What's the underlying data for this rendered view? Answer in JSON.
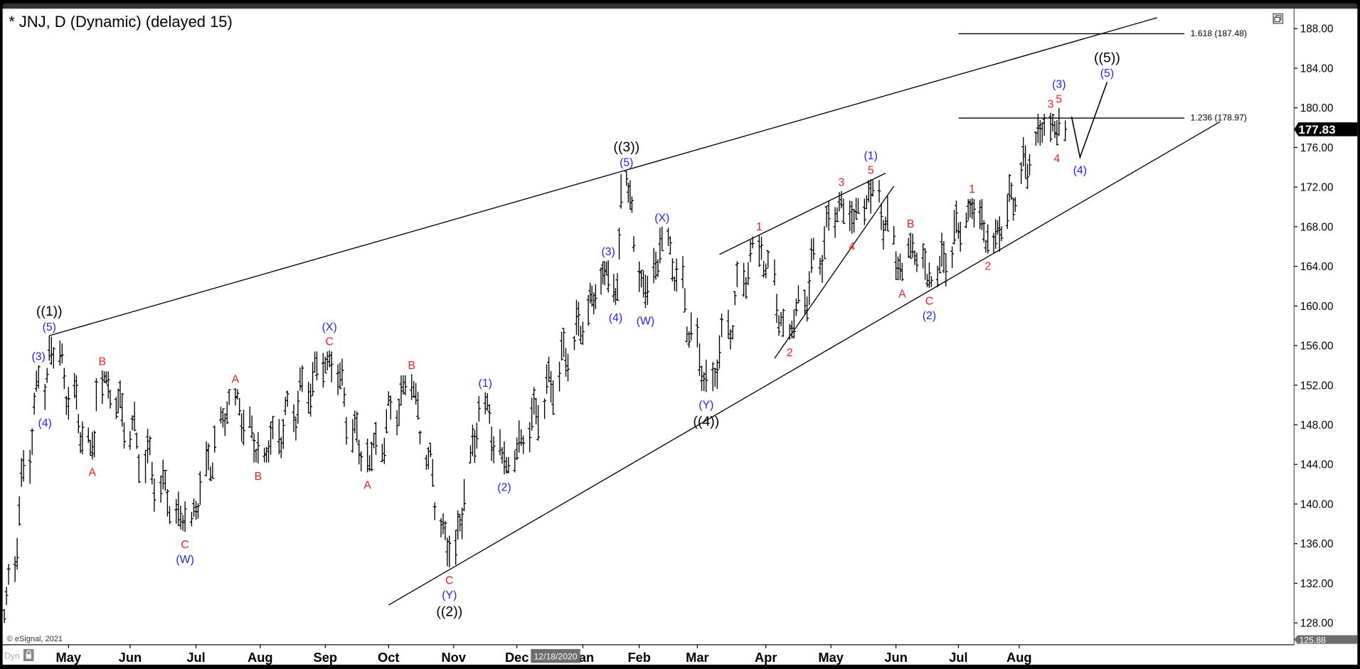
{
  "header": {
    "title": "* JNJ, D (Dynamic) (delayed 15)",
    "restore_icon": "window-restore-icon"
  },
  "footer": {
    "copyright": "© eSignal, 2021",
    "dyn_label": "Dyn",
    "lock_icon": "lock-icon",
    "date_tooltip": "12/18/2020"
  },
  "colors": {
    "black": "#000000",
    "blue": "#1f1fff",
    "red": "#ff1a1a",
    "price_tag_bg": "#000000",
    "low_tag_bg": "#6d6d6d"
  },
  "chart_data": {
    "type": "ohlc-bar",
    "symbol": "JNJ",
    "interval": "D",
    "ylim": [
      125.88,
      190
    ],
    "y_ticks": [
      "188.00",
      "184.00",
      "180.00",
      "176.00",
      "172.00",
      "168.00",
      "164.00",
      "160.00",
      "156.00",
      "152.00",
      "148.00",
      "144.00",
      "140.00",
      "136.00",
      "132.00",
      "128.00"
    ],
    "x_ticks": [
      "May",
      "Jun",
      "Jul",
      "Aug",
      "Sep",
      "Oct",
      "Nov",
      "Dec",
      "Jan",
      "Feb",
      "Mar",
      "Apr",
      "May",
      "Jun",
      "Jul",
      "Aug"
    ],
    "last_price": "177.83",
    "low_marker": "125.88",
    "grid": false,
    "pivots": [
      {
        "date": "2020-04-01",
        "price": 128.0,
        "type": "L",
        "labels": []
      },
      {
        "date": "2020-04-17",
        "price": 154.0,
        "type": "H",
        "labels": [
          {
            "text": "(3)",
            "color": "blue"
          }
        ]
      },
      {
        "date": "2020-04-20",
        "price": 149.5,
        "type": "L",
        "labels": [
          {
            "text": "(4)",
            "color": "blue"
          }
        ]
      },
      {
        "date": "2020-04-22",
        "price": 157.0,
        "type": "H",
        "labels": [
          {
            "text": "((1))",
            "color": "black"
          },
          {
            "text": "(5)",
            "color": "blue"
          }
        ]
      },
      {
        "date": "2020-05-13",
        "price": 144.5,
        "type": "L",
        "labels": [
          {
            "text": "A",
            "color": "red"
          }
        ]
      },
      {
        "date": "2020-05-18",
        "price": 153.5,
        "type": "H",
        "labels": [
          {
            "text": "B",
            "color": "red"
          }
        ]
      },
      {
        "date": "2020-06-26",
        "price": 137.2,
        "type": "L",
        "labels": [
          {
            "text": "C",
            "color": "red"
          },
          {
            "text": "(W)",
            "color": "blue"
          }
        ]
      },
      {
        "date": "2020-07-20",
        "price": 151.7,
        "type": "H",
        "labels": [
          {
            "text": "A",
            "color": "red"
          }
        ]
      },
      {
        "date": "2020-07-31",
        "price": 144.1,
        "type": "L",
        "labels": [
          {
            "text": "B",
            "color": "red"
          }
        ]
      },
      {
        "date": "2020-09-03",
        "price": 155.5,
        "type": "H",
        "labels": [
          {
            "text": "(X)",
            "color": "blue"
          },
          {
            "text": "C",
            "color": "red"
          }
        ]
      },
      {
        "date": "2020-09-21",
        "price": 143.2,
        "type": "L",
        "labels": [
          {
            "text": "A",
            "color": "red"
          }
        ]
      },
      {
        "date": "2020-10-12",
        "price": 153.1,
        "type": "H",
        "labels": [
          {
            "text": "B",
            "color": "red"
          }
        ]
      },
      {
        "date": "2020-10-30",
        "price": 133.6,
        "type": "L",
        "labels": [
          {
            "text": "C",
            "color": "red"
          },
          {
            "text": "(Y)",
            "color": "blue"
          },
          {
            "text": "((2))",
            "color": "black"
          }
        ]
      },
      {
        "date": "2020-11-16",
        "price": 151.3,
        "type": "H",
        "labels": [
          {
            "text": "(1)",
            "color": "blue"
          }
        ]
      },
      {
        "date": "2020-11-25",
        "price": 143.0,
        "type": "L",
        "labels": [
          {
            "text": "(2)",
            "color": "blue"
          }
        ]
      },
      {
        "date": "2021-01-15",
        "price": 164.6,
        "type": "H",
        "labels": [
          {
            "text": "(3)",
            "color": "blue"
          }
        ]
      },
      {
        "date": "2021-01-19",
        "price": 160.1,
        "type": "L",
        "labels": [
          {
            "text": "(4)",
            "color": "blue"
          }
        ]
      },
      {
        "date": "2021-01-25",
        "price": 173.6,
        "type": "H",
        "labels": [
          {
            "text": "((3))",
            "color": "black"
          },
          {
            "text": "(5)",
            "color": "blue"
          }
        ]
      },
      {
        "date": "2021-02-04",
        "price": 159.8,
        "type": "L",
        "labels": [
          {
            "text": "(W)",
            "color": "blue"
          }
        ]
      },
      {
        "date": "2021-02-12",
        "price": 168.0,
        "type": "H",
        "labels": [
          {
            "text": "(X)",
            "color": "blue"
          }
        ]
      },
      {
        "date": "2021-03-05",
        "price": 151.3,
        "type": "L",
        "labels": [
          {
            "text": "(Y)",
            "color": "blue"
          },
          {
            "text": "((4))",
            "color": "black"
          }
        ]
      },
      {
        "date": "2021-03-29",
        "price": 167.1,
        "type": "H",
        "labels": [
          {
            "text": "1",
            "color": "red"
          }
        ]
      },
      {
        "date": "2021-04-12",
        "price": 156.6,
        "type": "L",
        "labels": [
          {
            "text": "2",
            "color": "red"
          }
        ]
      },
      {
        "date": "2021-05-06",
        "price": 171.6,
        "type": "H",
        "labels": [
          {
            "text": "3",
            "color": "red"
          }
        ]
      },
      {
        "date": "2021-05-11",
        "price": 167.3,
        "type": "L",
        "labels": [
          {
            "text": "4",
            "color": "red"
          }
        ]
      },
      {
        "date": "2021-05-20",
        "price": 172.8,
        "type": "H",
        "labels": [
          {
            "text": "(1)",
            "color": "blue"
          },
          {
            "text": "5",
            "color": "red"
          }
        ]
      },
      {
        "date": "2021-06-04",
        "price": 162.5,
        "type": "L",
        "labels": [
          {
            "text": "A",
            "color": "red"
          }
        ]
      },
      {
        "date": "2021-06-08",
        "price": 167.4,
        "type": "H",
        "labels": [
          {
            "text": "B",
            "color": "red"
          }
        ]
      },
      {
        "date": "2021-06-17",
        "price": 161.8,
        "type": "L",
        "labels": [
          {
            "text": "C",
            "color": "red"
          },
          {
            "text": "(2)",
            "color": "blue"
          }
        ]
      },
      {
        "date": "2021-07-08",
        "price": 170.9,
        "type": "H",
        "labels": [
          {
            "text": "1",
            "color": "red"
          }
        ]
      },
      {
        "date": "2021-07-16",
        "price": 165.3,
        "type": "L",
        "labels": [
          {
            "text": "2",
            "color": "red"
          }
        ]
      },
      {
        "date": "2021-08-16",
        "price": 179.5,
        "type": "H",
        "labels": [
          {
            "text": "3",
            "color": "red"
          }
        ]
      },
      {
        "date": "2021-08-19",
        "price": 176.2,
        "type": "L",
        "labels": [
          {
            "text": "4",
            "color": "red"
          }
        ]
      },
      {
        "date": "2021-08-20",
        "price": 180.0,
        "type": "H",
        "labels": [
          {
            "text": "(3)",
            "color": "blue"
          },
          {
            "text": "5",
            "color": "red"
          }
        ]
      },
      {
        "date": "2021-08-23",
        "price": 177.83,
        "type": "C",
        "labels": []
      }
    ],
    "projection": [
      {
        "date": "2021-08-26",
        "price": 179.1,
        "labels": []
      },
      {
        "date": "2021-08-30",
        "price": 175.0,
        "type": "L",
        "labels": [
          {
            "text": "(4)",
            "color": "blue"
          }
        ]
      },
      {
        "date": "2021-09-12",
        "price": 182.6,
        "type": "H",
        "labels": [
          {
            "text": "((5))",
            "color": "black"
          },
          {
            "text": "(5)",
            "color": "blue"
          }
        ]
      }
    ],
    "trendlines": [
      {
        "name": "upper-channel",
        "from": {
          "date": "2020-04-22",
          "price": 157.0
        },
        "to": {
          "date": "2021-10-06",
          "price": 189.1
        }
      },
      {
        "name": "lower-channel",
        "from": {
          "date": "2020-10-01",
          "price": 129.8
        },
        "to": {
          "date": "2021-11-05",
          "price": 178.6
        }
      },
      {
        "name": "diagonal-upper",
        "from": {
          "date": "2021-03-11",
          "price": 165.2
        },
        "to": {
          "date": "2021-05-27",
          "price": 173.4
        }
      },
      {
        "name": "diagonal-lower",
        "from": {
          "date": "2021-04-05",
          "price": 154.7
        },
        "to": {
          "date": "2021-05-31",
          "price": 172.1
        }
      }
    ],
    "fib_levels": [
      {
        "label": "1.618 (187.48)",
        "price": 187.48,
        "from": "2021-07-01",
        "to": "2021-10-19"
      },
      {
        "label": "1.236 (178.97)",
        "price": 178.97,
        "from": "2021-07-01",
        "to": "2021-10-19"
      }
    ]
  }
}
